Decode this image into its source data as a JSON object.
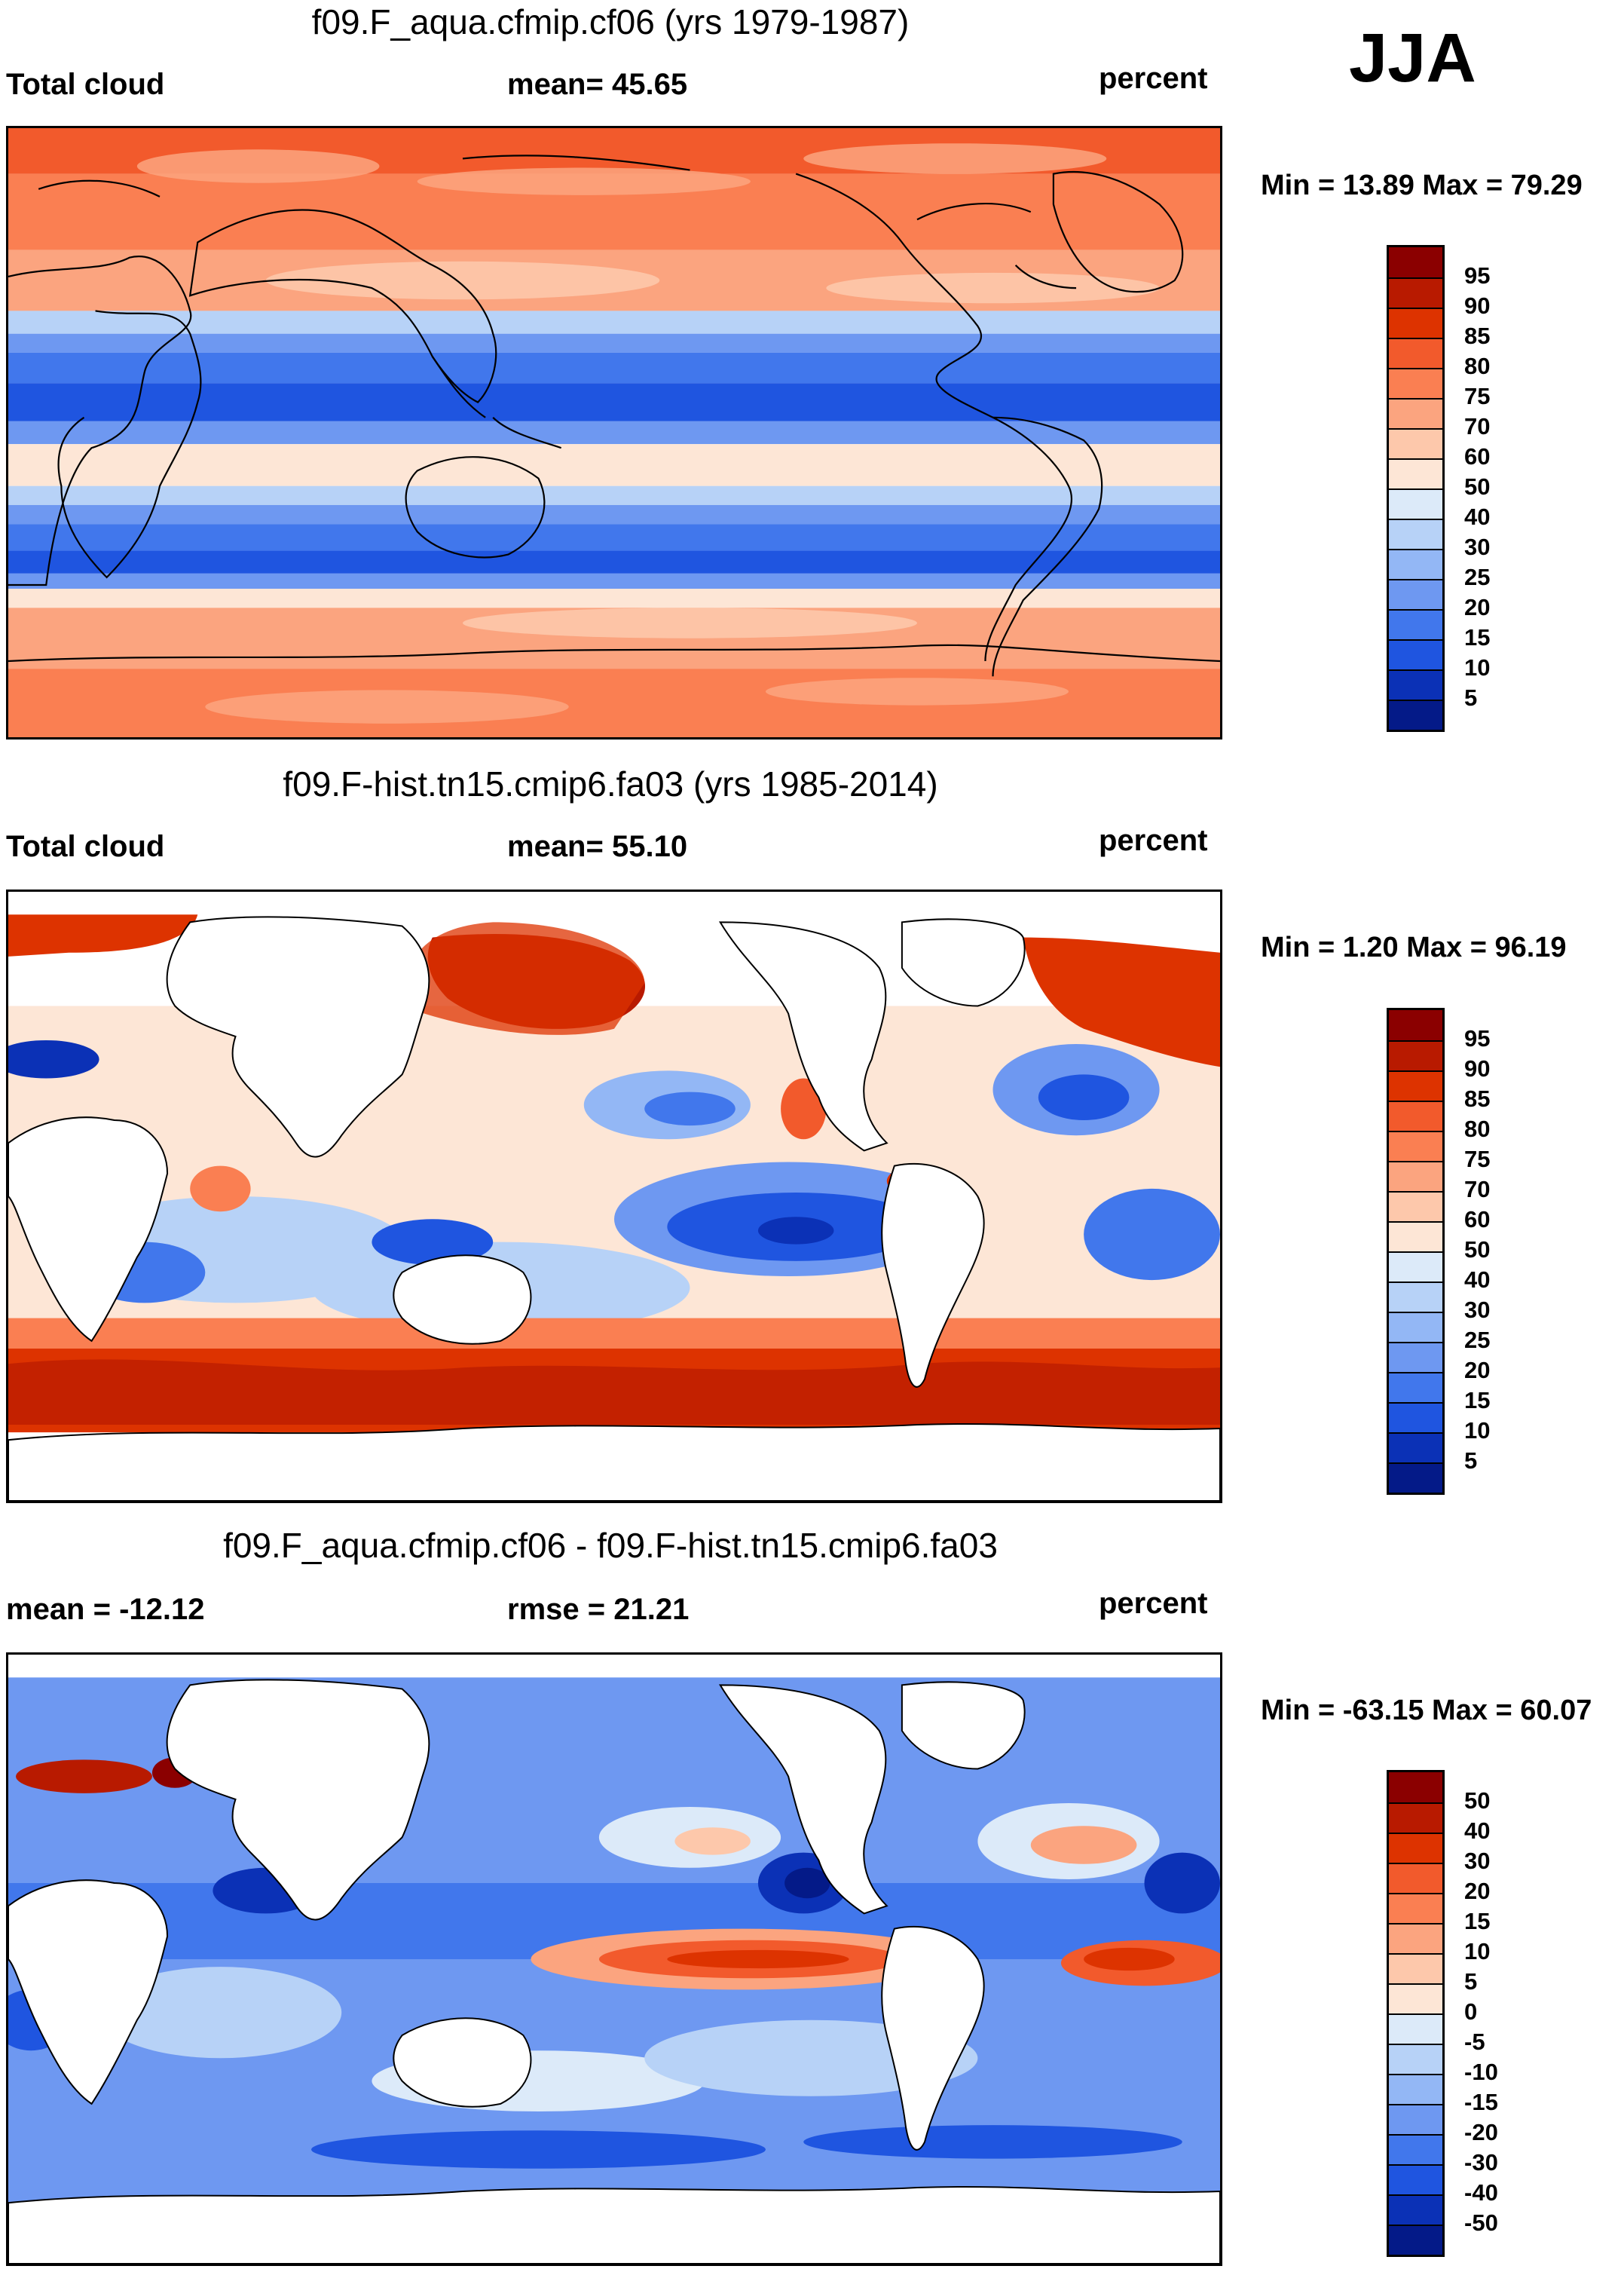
{
  "season": "JJA",
  "panels": [
    {
      "id": "model",
      "title": "f09.F_aqua.cfmip.cf06 (yrs 1979-1987)",
      "left_label": "Total cloud",
      "center_label": "mean=  45.65",
      "right_label": "percent",
      "minmax": "Min =  13.89 Max =  79.29"
    },
    {
      "id": "obs",
      "title": "f09.F-hist.tn15.cmip6.fa03 (yrs 1985-2014)",
      "left_label": "Total cloud",
      "center_label": "mean=  55.10",
      "right_label": "percent",
      "minmax": "Min =   1.20 Max =  96.19"
    },
    {
      "id": "diff",
      "title": "f09.F_aqua.cfmip.cf06 - f09.F-hist.tn15.cmip6.fa03",
      "left_label": "mean = -12.12",
      "center_label": "rmse =  21.21",
      "right_label": "percent",
      "minmax": "Min = -63.15 Max =  60.07"
    }
  ],
  "colorbars": {
    "abs": {
      "labels": [
        "95",
        "90",
        "85",
        "80",
        "75",
        "70",
        "60",
        "50",
        "40",
        "30",
        "25",
        "20",
        "15",
        "10",
        "5"
      ],
      "colors": [
        "#8b0000",
        "#b81a00",
        "#dd3300",
        "#f25a2c",
        "#fa7f52",
        "#fba47f",
        "#fdc8ab",
        "#fde6d6",
        "#dceaf9",
        "#b7d2f7",
        "#93b7f5",
        "#6e98f1",
        "#4177ec",
        "#1f55e0",
        "#0b31b6",
        "#041a88"
      ]
    },
    "diff": {
      "labels": [
        "50",
        "40",
        "30",
        "20",
        "15",
        "10",
        "5",
        "0",
        "-5",
        "-10",
        "-15",
        "-20",
        "-30",
        "-40",
        "-50"
      ],
      "colors": [
        "#8b0000",
        "#b81a00",
        "#dd3300",
        "#f25a2c",
        "#fa7f52",
        "#fba47f",
        "#fdc8ab",
        "#fde6d6",
        "#dceaf9",
        "#b7d2f7",
        "#93b7f5",
        "#6e98f1",
        "#4177ec",
        "#1f55e0",
        "#0b31b6",
        "#041a88"
      ]
    }
  }
}
